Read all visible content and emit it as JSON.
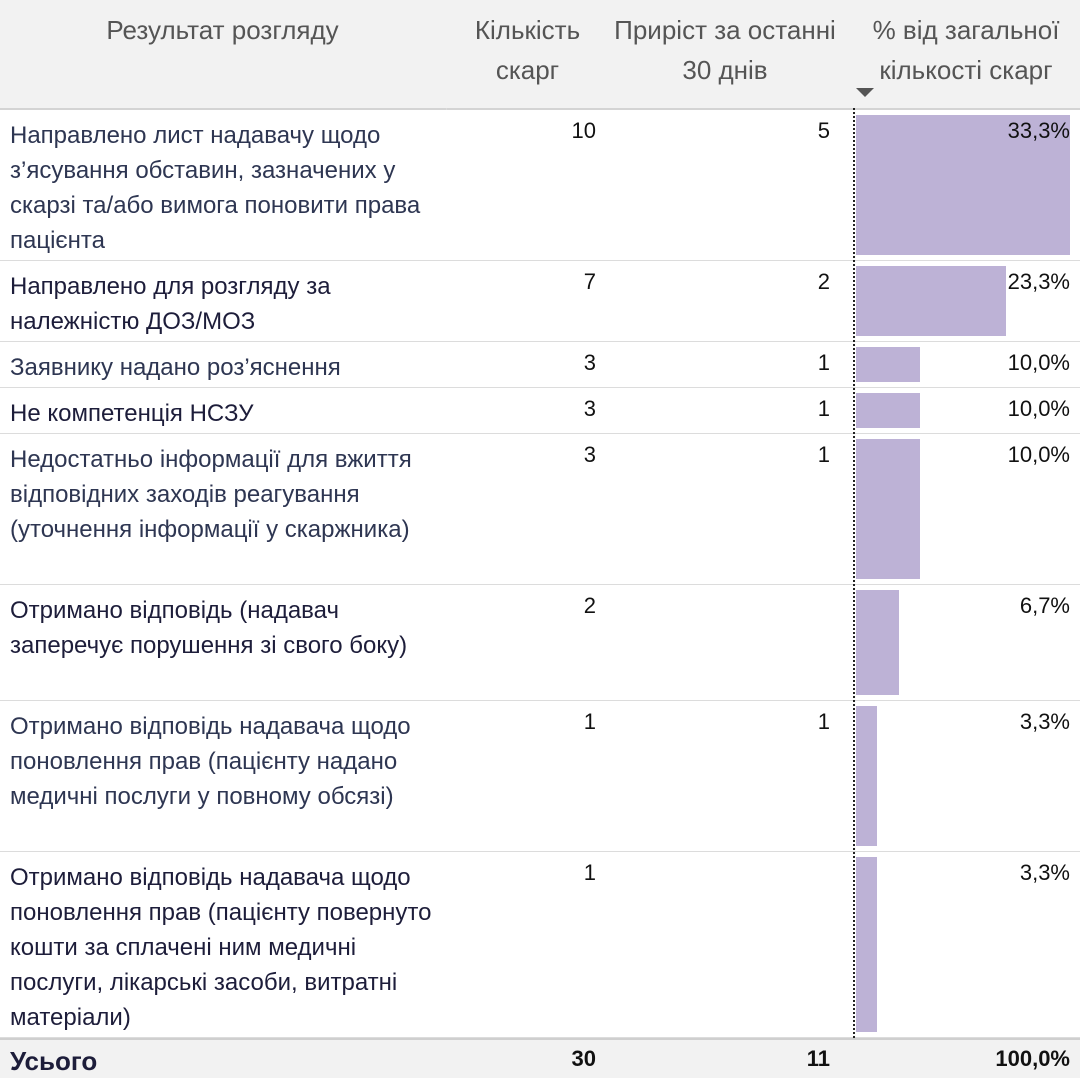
{
  "header": {
    "result": "Результат розгляду",
    "count": "Кількість скарг",
    "growth": "Приріст за останні 30 днів",
    "pct": "% від загальної кількості скарг"
  },
  "rows": [
    {
      "label": "Направлено лист надавачу щодо з’ясування обставин, зазначених у скарзі та/або вимога поновити права пацієнта",
      "count": "10",
      "growth": "5",
      "pct_label": "33,3%",
      "pct_value": 33.3
    },
    {
      "label": "Направлено для розгляду за належністю ДОЗ/МОЗ",
      "count": "7",
      "growth": "2",
      "pct_label": "23,3%",
      "pct_value": 23.3
    },
    {
      "label": "Заявнику надано роз’яснення",
      "count": "3",
      "growth": "1",
      "pct_label": "10,0%",
      "pct_value": 10.0
    },
    {
      "label": "Не компетенція НСЗУ",
      "count": "3",
      "growth": "1",
      "pct_label": "10,0%",
      "pct_value": 10.0
    },
    {
      "label": "Недостатньо інформації для вжиття відповідних заходів реагування (уточнення інформації у скаржника)",
      "count": "3",
      "growth": "1",
      "pct_label": "10,0%",
      "pct_value": 10.0
    },
    {
      "label": "Отримано відповідь (надавач заперечує порушення зі свого боку)",
      "count": "2",
      "growth": "",
      "pct_label": "6,7%",
      "pct_value": 6.7
    },
    {
      "label": "Отримано відповідь надавача щодо поновлення прав (пацієнту надано медичні послуги у повному обсязі)",
      "count": "1",
      "growth": "1",
      "pct_label": "3,3%",
      "pct_value": 3.3
    },
    {
      "label": "Отримано відповідь надавача щодо поновлення прав (пацієнту повернуто кошти за сплачені ним медичні послуги, лікарські засоби, витратні матеріали)",
      "count": "1",
      "growth": "",
      "pct_label": "3,3%",
      "pct_value": 3.3
    }
  ],
  "total": {
    "label": "Усього",
    "count": "30",
    "growth": "11",
    "pct": "100,0%"
  },
  "colors": {
    "bar": "#bdb2d6",
    "header_bg": "#f2f2f2"
  },
  "icons": {
    "sort": "sort-descending-icon"
  }
}
